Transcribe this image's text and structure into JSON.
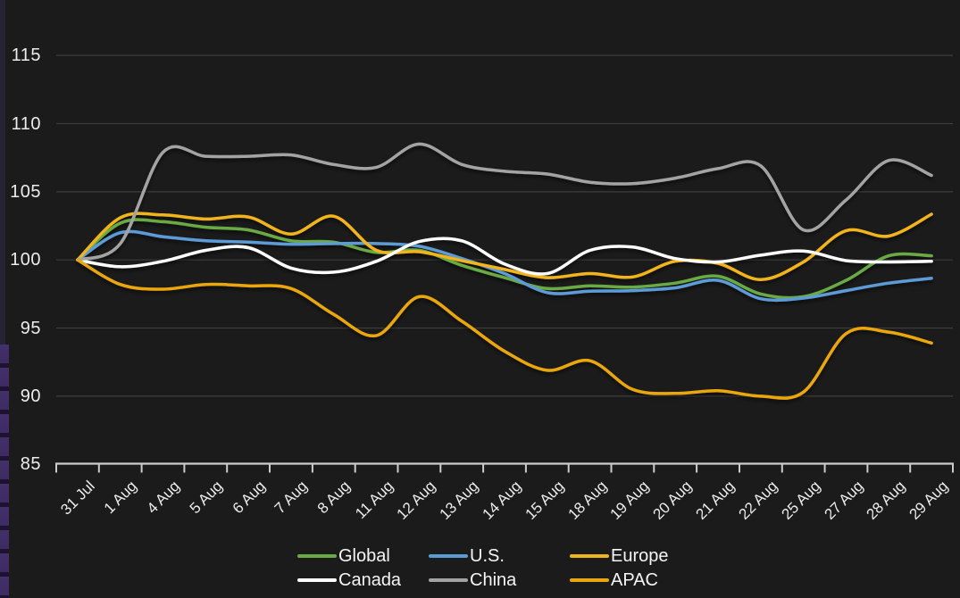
{
  "chart_data": {
    "type": "line",
    "title": "",
    "x_categories": [
      "31 Jul",
      "1 Aug",
      "4 Aug",
      "5 Aug",
      "6 Aug",
      "7 Aug",
      "8 Aug",
      "11 Aug",
      "12 Aug",
      "13 Aug",
      "14 Aug",
      "15 Aug",
      "18 Aug",
      "19 Aug",
      "20 Aug",
      "21 Aug",
      "22 Aug",
      "25 Aug",
      "27 Aug",
      "28 Aug",
      "29 Aug"
    ],
    "y_ticks": [
      115,
      110,
      105,
      100,
      95,
      90,
      85
    ],
    "ylim": [
      84,
      117
    ],
    "base_value": 100,
    "grid": "horizontal",
    "legend_position": "bottom-center-2rows",
    "series": [
      {
        "name": "Global",
        "color": "#6aaa45",
        "values": [
          100,
          102.7,
          102.8,
          102.4,
          102.2,
          101.4,
          101.3,
          100.55,
          100.7,
          99.6,
          98.7,
          97.9,
          98.1,
          98.0,
          98.3,
          98.8,
          97.5,
          97.3,
          98.5,
          100.3,
          100.3
        ]
      },
      {
        "name": "U.S.",
        "color": "#5b9bd5",
        "values": [
          100,
          102.0,
          101.7,
          101.4,
          101.3,
          101.15,
          101.2,
          101.2,
          101.0,
          100.1,
          99.0,
          97.6,
          97.7,
          97.75,
          97.95,
          98.5,
          97.15,
          97.2,
          97.75,
          98.3,
          98.65
        ]
      },
      {
        "name": "Europe",
        "color": "#f2b41c",
        "values": [
          100,
          103.1,
          103.3,
          103.0,
          103.15,
          101.9,
          103.2,
          100.7,
          100.6,
          99.95,
          99.3,
          98.7,
          99.0,
          98.75,
          99.9,
          99.75,
          98.55,
          99.85,
          102.15,
          101.75,
          103.35
        ]
      },
      {
        "name": "Canada",
        "color": "#ffffff",
        "values": [
          100,
          99.5,
          99.9,
          100.7,
          100.9,
          99.4,
          99.1,
          99.9,
          101.35,
          101.4,
          99.7,
          99.0,
          100.7,
          100.95,
          100.1,
          99.85,
          100.35,
          100.65,
          99.95,
          99.85,
          99.9
        ]
      },
      {
        "name": "China",
        "color": "#a3a3a3",
        "values": [
          100,
          101.2,
          107.9,
          107.6,
          107.6,
          107.7,
          107.0,
          106.8,
          108.5,
          107.0,
          106.5,
          106.3,
          105.7,
          105.6,
          106.0,
          106.7,
          106.9,
          102.2,
          104.4,
          107.3,
          106.2
        ]
      },
      {
        "name": "APAC",
        "color": "#eaa60d",
        "values": [
          100,
          98.2,
          97.85,
          98.2,
          98.1,
          97.9,
          96.0,
          94.45,
          97.3,
          95.5,
          93.3,
          91.9,
          92.6,
          90.5,
          90.2,
          90.4,
          90.0,
          90.3,
          94.6,
          94.7,
          93.9
        ]
      }
    ]
  },
  "legend": {
    "items": [
      "Global",
      "U.S.",
      "Europe",
      "Canada",
      "China",
      "APAC"
    ]
  },
  "colors": {
    "background": "#1b1b1b",
    "gridline": "#3d3d3d",
    "axis": "#cccccc",
    "tick_label": "#ececec",
    "edge_strip": "#262332",
    "edge_strip_purple": "#43306b"
  }
}
